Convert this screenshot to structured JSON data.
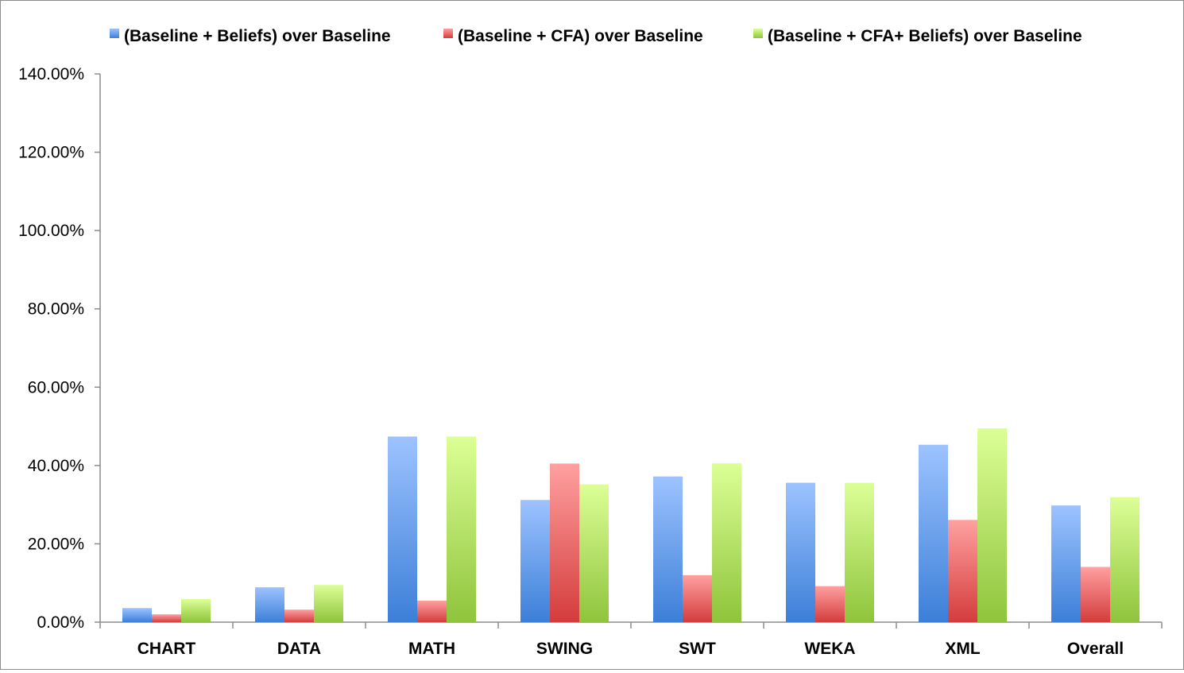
{
  "chart_data": {
    "type": "bar",
    "title": "",
    "xlabel": "",
    "ylabel": "",
    "categories": [
      "CHART",
      "DATA",
      "MATH",
      "SWING",
      "SWT",
      "WEKA",
      "XML",
      "Overall"
    ],
    "series": [
      {
        "name": "(Baseline + Beliefs) over Baseline",
        "color_top": "#9dc3ff",
        "color_bottom": "#3c7fd8",
        "values": [
          3.6,
          8.9,
          47.4,
          31.2,
          37.2,
          35.6,
          45.3,
          29.8
        ]
      },
      {
        "name": "(Baseline + CFA) over Baseline",
        "color_top": "#ffa0a0",
        "color_bottom": "#d43c3c",
        "values": [
          2.0,
          3.2,
          5.5,
          40.5,
          12.0,
          9.2,
          26.1,
          14.1
        ]
      },
      {
        "name": "(Baseline + CFA+ Beliefs) over Baseline",
        "color_top": "#dcff96",
        "color_bottom": "#8fc43c",
        "values": [
          5.9,
          9.5,
          47.4,
          35.2,
          40.6,
          35.6,
          49.5,
          31.9
        ]
      }
    ],
    "ylim": [
      0,
      140
    ],
    "yticks": [
      0,
      20,
      40,
      60,
      80,
      100,
      120,
      140
    ],
    "ytick_labels": [
      "0.00%",
      "20.00%",
      "40.00%",
      "60.00%",
      "80.00%",
      "100.00%",
      "120.00%",
      "140.00%"
    ],
    "grid": false,
    "legend_position": "top"
  }
}
